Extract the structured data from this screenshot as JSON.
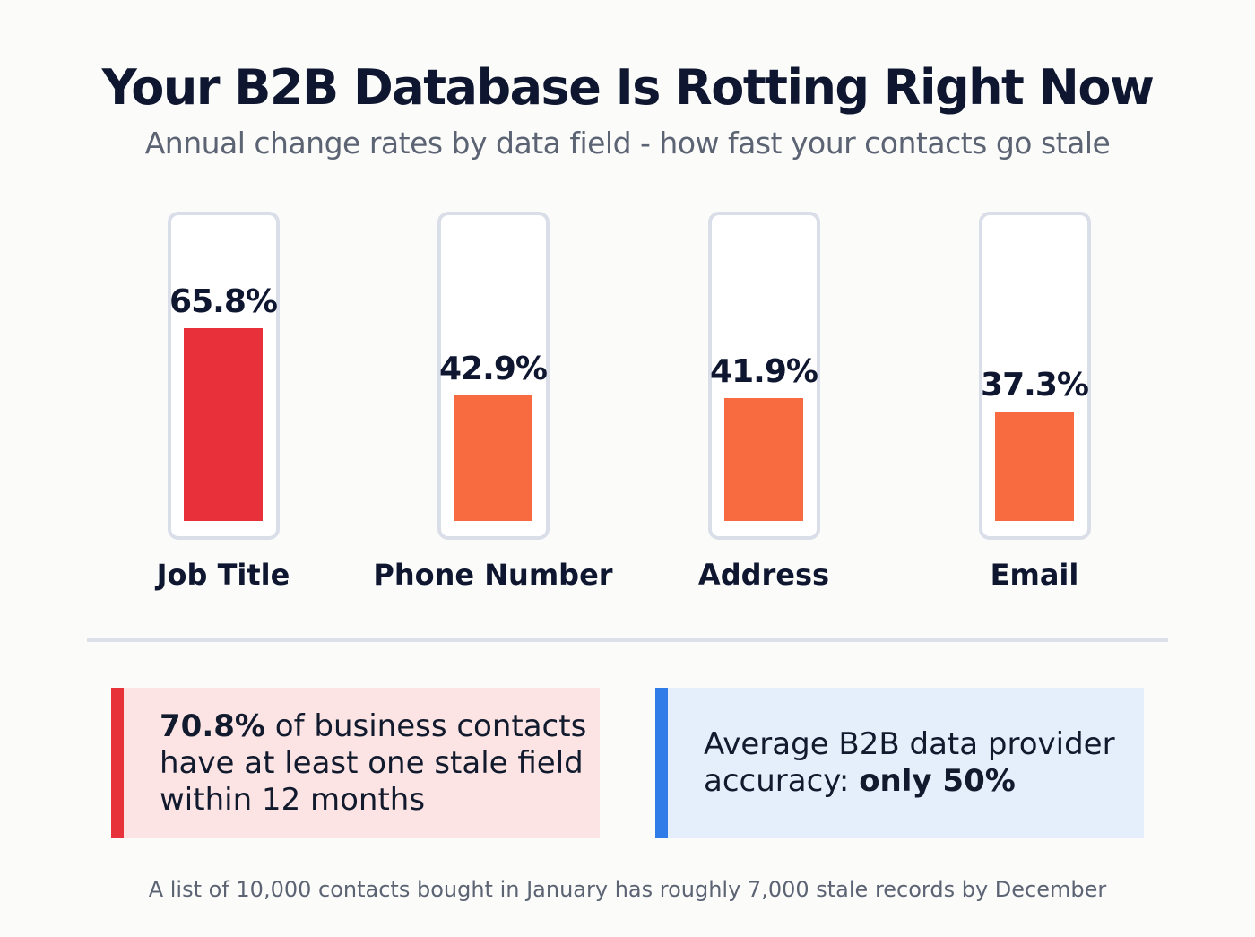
{
  "header": {
    "title": "Your B2B Database Is Rotting Right Now",
    "subtitle": "Annual change rates by data field - how fast your contacts go stale"
  },
  "chart_data": {
    "type": "bar",
    "categories": [
      "Job Title",
      "Phone Number",
      "Address",
      "Email"
    ],
    "values": [
      65.8,
      42.9,
      41.9,
      37.3
    ],
    "value_labels": [
      "65.8%",
      "42.9%",
      "41.9%",
      "37.3%"
    ],
    "ylim": [
      0,
      100
    ],
    "colors": [
      "#e8303a",
      "#f86b40",
      "#f86b40",
      "#f86b40"
    ],
    "grid": false
  },
  "callouts": {
    "left": {
      "bold": "70.8%",
      "text": " of business contacts have at least one stale field within 12 months",
      "accent": "#e8323a"
    },
    "right": {
      "text": "Average B2B data provider accuracy: ",
      "bold": "only 50%",
      "accent": "#2f7be8"
    }
  },
  "footer": {
    "note": "A list of 10,000 contacts bought in January has roughly 7,000 stale records by December"
  }
}
